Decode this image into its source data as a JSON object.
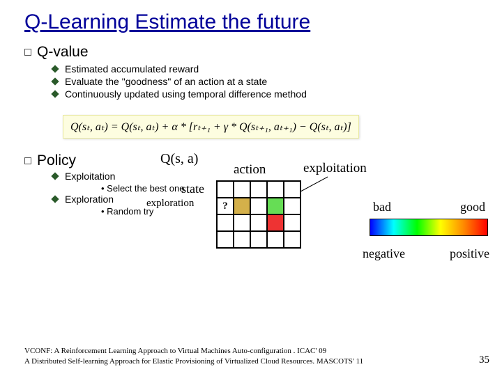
{
  "title": "Q-Learning Estimate the future",
  "section1": {
    "heading": "Q-value",
    "bullets": [
      "Estimated accumulated reward",
      "Evaluate the \"goodness\" of an action at a state",
      "Continuously updated using temporal difference method"
    ]
  },
  "formula": "Q(sₜ, aₜ) = Q(sₜ, aₜ) + α * [rₜ₊₁ + γ * Q(sₜ₊₁, aₜ₊₁) − Q(sₜ, aₜ)]",
  "section2": {
    "heading": "Policy",
    "q_label": "Q(s, a)",
    "sub1": {
      "label": "Exploitation",
      "detail": "Select the best one"
    },
    "sub2": {
      "label": "Exploration",
      "detail": "Random try"
    },
    "state": "state",
    "action": "action",
    "exploitation": "exploitation",
    "exploration": "exploration",
    "bad": "bad",
    "good": "good",
    "negative": "negative",
    "positive": "positive"
  },
  "grid": {
    "rows": 4,
    "cols": 5,
    "cell_colors": [
      [
        "#ffffff",
        "#ffffff",
        "#ffffff",
        "#ffffff",
        "#ffffff"
      ],
      [
        "#ffffff",
        "#d4b04a",
        "#ffffff",
        "#66dd55",
        "#ffffff"
      ],
      [
        "#ffffff",
        "#ffffff",
        "#ffffff",
        "#ee3333",
        "#ffffff"
      ],
      [
        "#ffffff",
        "#ffffff",
        "#ffffff",
        "#ffffff",
        "#ffffff"
      ]
    ],
    "question_cell": {
      "row": 1,
      "col": 0,
      "text": "?"
    }
  },
  "spectrum_colors": [
    "#0000ff",
    "#00ffff",
    "#00ff00",
    "#ffff00",
    "#ff8800",
    "#ff0000"
  ],
  "footer": {
    "line1": "VCONF: A Reinforcement Learning Approach to Virtual Machines Auto-configuration . ICAC' 09",
    "line2": "A Distributed Self-learning Approach for Elastic Provisioning of Virtualized Cloud Resources. MASCOTS' 11"
  },
  "page": "35"
}
